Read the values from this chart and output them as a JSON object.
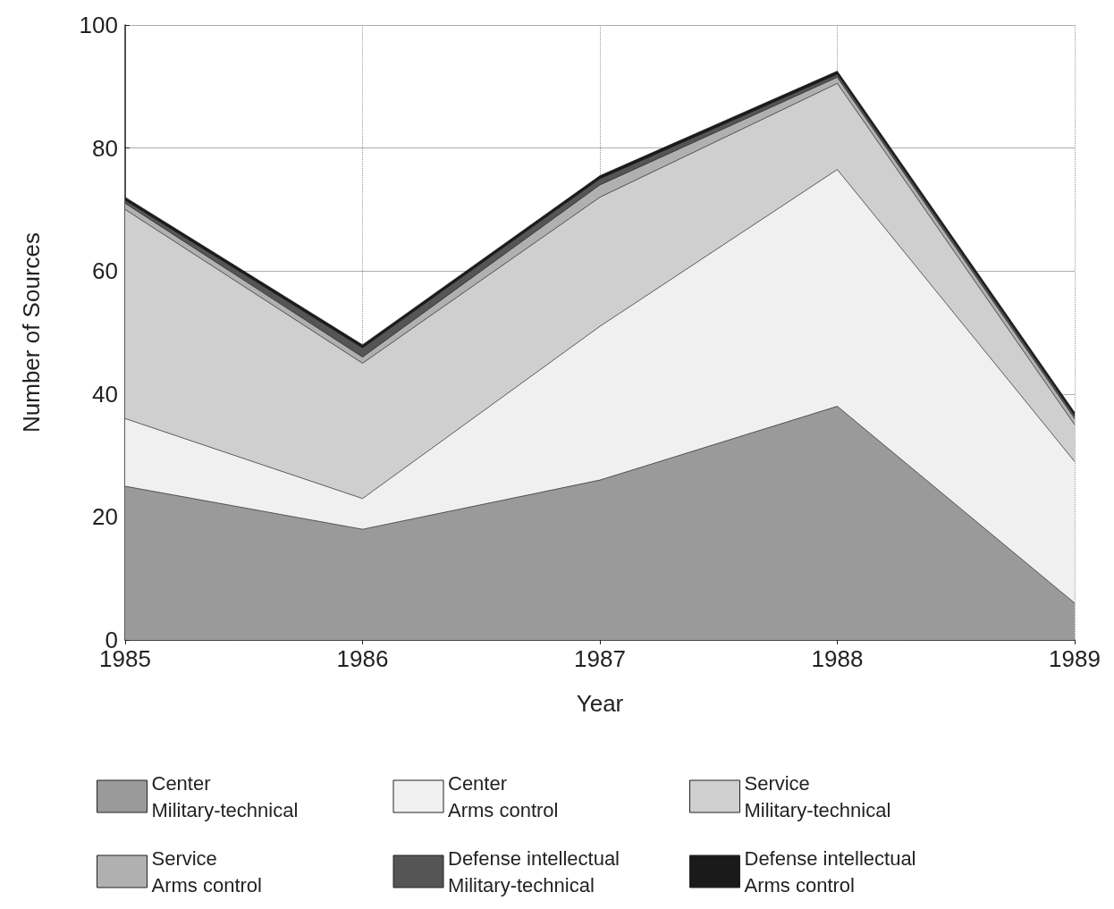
{
  "chart_data": {
    "type": "area",
    "stacked": true,
    "xlabel": "Year",
    "ylabel": "Number of Sources",
    "x": [
      1985,
      1986,
      1987,
      1988,
      1989
    ],
    "xlim": [
      1985,
      1989
    ],
    "xticks": [
      1985,
      1986,
      1987,
      1988,
      1989
    ],
    "ylim": [
      0,
      100
    ],
    "yticks": [
      0,
      20,
      40,
      60,
      80,
      100
    ],
    "grid": true,
    "legend": "bottom",
    "line_style": "solid",
    "marker": "none",
    "series": [
      {
        "name": "Center\nMilitary-technical",
        "color": "#9a9a9a",
        "values": [
          25,
          18,
          26,
          38,
          6
        ]
      },
      {
        "name": "Center\nArms control",
        "color": "#f0f0f0",
        "values": [
          11,
          5,
          25,
          38.5,
          23
        ]
      },
      {
        "name": "Service\nMilitary-technical",
        "color": "#cfcfcf",
        "values": [
          34,
          22,
          21,
          14,
          6
        ]
      },
      {
        "name": "Service\nArms control",
        "color": "#b0b0b0",
        "values": [
          1,
          1,
          2,
          1,
          1
        ]
      },
      {
        "name": "Defense intellectual\nMilitary-technical",
        "color": "#555555",
        "values": [
          0.5,
          1.5,
          1,
          0.5,
          0.5
        ]
      },
      {
        "name": "Defense intellectual\nArms control",
        "color": "#1a1a1a",
        "values": [
          0.5,
          0.5,
          0.5,
          0.5,
          0.5
        ]
      }
    ]
  }
}
